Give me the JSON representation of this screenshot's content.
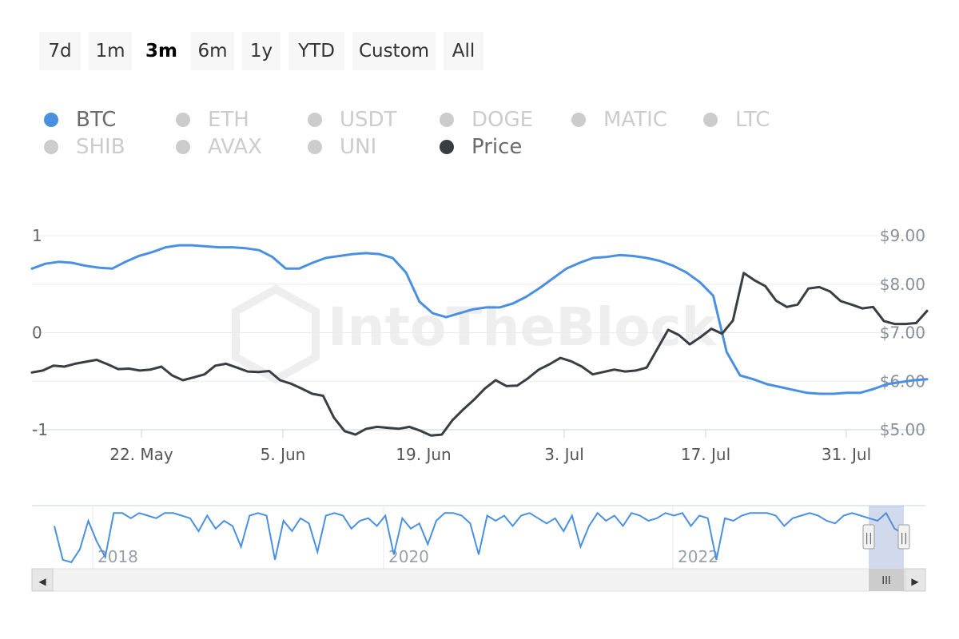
{
  "range_buttons": [
    "7d",
    "1m",
    "3m",
    "6m",
    "1y",
    "YTD",
    "Custom",
    "All"
  ],
  "range_active": "3m",
  "legend_rows": [
    [
      {
        "label": "BTC",
        "color": "#4a90e2",
        "visible": true
      },
      {
        "label": "ETH",
        "color": "#cccccc",
        "visible": false
      },
      {
        "label": "USDT",
        "color": "#cccccc",
        "visible": false
      },
      {
        "label": "DOGE",
        "color": "#cccccc",
        "visible": false
      },
      {
        "label": "MATIC",
        "color": "#cccccc",
        "visible": false
      },
      {
        "label": "LTC",
        "color": "#cccccc",
        "visible": false
      }
    ],
    [
      {
        "label": "SHIB",
        "color": "#cccccc",
        "visible": false
      },
      {
        "label": "AVAX",
        "color": "#cccccc",
        "visible": false
      },
      {
        "label": "UNI",
        "color": "#cccccc",
        "visible": false
      },
      {
        "label": "Price",
        "color": "#3a3d42",
        "visible": true
      }
    ]
  ],
  "watermark": "IntoTheBlock",
  "chart_data": {
    "type": "line",
    "x_ticks": [
      "22. May",
      "5. Jun",
      "19. Jun",
      "3. Jul",
      "17. Jul",
      "31. Jul"
    ],
    "y_left_ticks": [
      "1",
      "0",
      "-1"
    ],
    "y_right_ticks": [
      "$9.00",
      "$8.00",
      "$7.00",
      "$6.00",
      "$5.00"
    ],
    "ylim_left": [
      -1,
      1
    ],
    "ylim_right": [
      5,
      9
    ],
    "series": [
      {
        "name": "BTC",
        "color": "#4a90e2",
        "axis": "left",
        "values": [
          0.66,
          0.71,
          0.73,
          0.72,
          0.69,
          0.67,
          0.66,
          0.73,
          0.79,
          0.83,
          0.88,
          0.9,
          0.9,
          0.89,
          0.88,
          0.88,
          0.87,
          0.85,
          0.78,
          0.66,
          0.66,
          0.72,
          0.77,
          0.79,
          0.81,
          0.82,
          0.81,
          0.77,
          0.62,
          0.32,
          0.2,
          0.16,
          0.2,
          0.24,
          0.26,
          0.26,
          0.3,
          0.37,
          0.46,
          0.56,
          0.66,
          0.72,
          0.77,
          0.78,
          0.8,
          0.79,
          0.77,
          0.74,
          0.69,
          0.62,
          0.52,
          0.38,
          -0.2,
          -0.44,
          -0.48,
          -0.53,
          -0.56,
          -0.59,
          -0.62,
          -0.63,
          -0.63,
          -0.62,
          -0.62,
          -0.58,
          -0.53,
          -0.51,
          -0.49,
          -0.48
        ]
      },
      {
        "name": "Price",
        "color": "#3a3d42",
        "axis": "right",
        "values": [
          6.18,
          6.22,
          6.32,
          6.3,
          6.36,
          6.4,
          6.44,
          6.35,
          6.25,
          6.26,
          6.22,
          6.24,
          6.3,
          6.12,
          6.02,
          6.08,
          6.14,
          6.32,
          6.36,
          6.28,
          6.2,
          6.19,
          6.21,
          6.02,
          5.95,
          5.85,
          5.74,
          5.7,
          5.25,
          4.97,
          4.9,
          5.02,
          5.06,
          5.04,
          5.02,
          5.06,
          4.98,
          4.88,
          4.9,
          5.2,
          5.42,
          5.62,
          5.85,
          6.02,
          5.9,
          5.91,
          6.06,
          6.24,
          6.35,
          6.48,
          6.41,
          6.3,
          6.14,
          6.19,
          6.24,
          6.2,
          6.22,
          6.28,
          6.67,
          7.06,
          6.95,
          6.76,
          6.91,
          7.08,
          6.98,
          7.25,
          8.23,
          8.08,
          7.96,
          7.66,
          7.53,
          7.58,
          7.91,
          7.94,
          7.85,
          7.65,
          7.58,
          7.5,
          7.53,
          7.24,
          7.18,
          7.18,
          7.2,
          7.45
        ]
      }
    ]
  },
  "navigator": {
    "year_labels": [
      "2018",
      "2020",
      "2022"
    ],
    "series_values": [
      0.4,
      -0.9,
      -1,
      -0.5,
      0.6,
      -0.2,
      -0.8,
      0.9,
      0.9,
      0.7,
      0.9,
      0.8,
      0.7,
      0.9,
      0.9,
      0.8,
      0.7,
      0.2,
      0.8,
      0.3,
      0.6,
      0.4,
      -0.4,
      0.8,
      0.9,
      0.8,
      -0.9,
      0.6,
      0.2,
      0.7,
      0.5,
      -0.6,
      0.8,
      0.9,
      0.8,
      0.3,
      0.6,
      0.7,
      0.4,
      0.8,
      -0.7,
      0.7,
      0.3,
      0.5,
      -0.3,
      0.6,
      0.9,
      0.9,
      0.8,
      0.5,
      -0.7,
      0.8,
      0.6,
      0.8,
      0.4,
      0.8,
      0.9,
      0.7,
      0.5,
      0.7,
      0.2,
      0.8,
      -0.4,
      0.4,
      0.9,
      0.6,
      0.8,
      0.4,
      0.9,
      0.8,
      0.6,
      0.7,
      0.9,
      0.8,
      0.9,
      0.4,
      0.8,
      0.7,
      -0.9,
      0.7,
      0.6,
      0.8,
      0.9,
      0.9,
      0.9,
      0.8,
      0.4,
      0.7,
      0.8,
      0.9,
      0.8,
      0.6,
      0.5,
      0.8,
      0.9,
      0.8,
      0.7,
      0.6,
      0.9,
      0.3,
      0.1
    ]
  },
  "scrollbar": {
    "left_arrow": "◀",
    "right_arrow": "▶",
    "grip": "III"
  },
  "handles": {
    "glyph": "||"
  }
}
